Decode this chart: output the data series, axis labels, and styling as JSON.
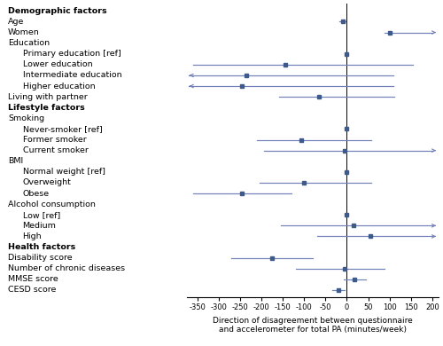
{
  "rows": [
    {
      "label": "Demographic factors",
      "indent": 0,
      "bold": true,
      "estimate": null,
      "ci_low": null,
      "ci_high": null,
      "arrow_low": false,
      "arrow_high": false,
      "is_ref": false
    },
    {
      "label": "Age",
      "indent": 0,
      "bold": false,
      "estimate": -10,
      "ci_low": -18,
      "ci_high": -2,
      "arrow_low": false,
      "arrow_high": false,
      "is_ref": false
    },
    {
      "label": "Women",
      "indent": 0,
      "bold": false,
      "estimate": 100,
      "ci_low": 88,
      "ci_high": 200,
      "arrow_low": false,
      "arrow_high": true,
      "is_ref": false
    },
    {
      "label": "Education",
      "indent": 0,
      "bold": false,
      "estimate": null,
      "ci_low": null,
      "ci_high": null,
      "arrow_low": false,
      "arrow_high": false,
      "is_ref": false
    },
    {
      "label": "Primary education [ref]",
      "indent": 1,
      "bold": false,
      "estimate": 0,
      "ci_low": null,
      "ci_high": null,
      "arrow_low": false,
      "arrow_high": false,
      "is_ref": true
    },
    {
      "label": "Lower education",
      "indent": 1,
      "bold": false,
      "estimate": -145,
      "ci_low": -360,
      "ci_high": 155,
      "arrow_low": false,
      "arrow_high": false,
      "is_ref": false
    },
    {
      "label": "Intermediate education",
      "indent": 1,
      "bold": false,
      "estimate": -235,
      "ci_low": -370,
      "ci_high": 110,
      "arrow_low": true,
      "arrow_high": false,
      "is_ref": false
    },
    {
      "label": "Higher education",
      "indent": 1,
      "bold": false,
      "estimate": -245,
      "ci_low": -370,
      "ci_high": 110,
      "arrow_low": true,
      "arrow_high": false,
      "is_ref": false
    },
    {
      "label": "Living with partner",
      "indent": 0,
      "bold": false,
      "estimate": -65,
      "ci_low": -158,
      "ci_high": 112,
      "arrow_low": false,
      "arrow_high": false,
      "is_ref": false
    },
    {
      "label": "Lifestyle factors",
      "indent": 0,
      "bold": true,
      "estimate": null,
      "ci_low": null,
      "ci_high": null,
      "arrow_low": false,
      "arrow_high": false,
      "is_ref": false
    },
    {
      "label": "Smoking",
      "indent": 0,
      "bold": false,
      "estimate": null,
      "ci_low": null,
      "ci_high": null,
      "arrow_low": false,
      "arrow_high": false,
      "is_ref": false
    },
    {
      "label": "Never-smoker [ref]",
      "indent": 1,
      "bold": false,
      "estimate": 0,
      "ci_low": null,
      "ci_high": null,
      "arrow_low": false,
      "arrow_high": false,
      "is_ref": true
    },
    {
      "label": "Former smoker",
      "indent": 1,
      "bold": false,
      "estimate": -107,
      "ci_low": -210,
      "ci_high": 58,
      "arrow_low": false,
      "arrow_high": false,
      "is_ref": false
    },
    {
      "label": "Current smoker",
      "indent": 1,
      "bold": false,
      "estimate": -5,
      "ci_low": -195,
      "ci_high": 200,
      "arrow_low": false,
      "arrow_high": true,
      "is_ref": false
    },
    {
      "label": "BMI",
      "indent": 0,
      "bold": false,
      "estimate": null,
      "ci_low": null,
      "ci_high": null,
      "arrow_low": false,
      "arrow_high": false,
      "is_ref": false
    },
    {
      "label": "Normal weight [ref]",
      "indent": 1,
      "bold": false,
      "estimate": 0,
      "ci_low": null,
      "ci_high": null,
      "arrow_low": false,
      "arrow_high": false,
      "is_ref": true
    },
    {
      "label": "Overweight",
      "indent": 1,
      "bold": false,
      "estimate": -100,
      "ci_low": -205,
      "ci_high": 58,
      "arrow_low": false,
      "arrow_high": false,
      "is_ref": false
    },
    {
      "label": "Obese",
      "indent": 1,
      "bold": false,
      "estimate": -245,
      "ci_low": -360,
      "ci_high": -130,
      "arrow_low": false,
      "arrow_high": false,
      "is_ref": false
    },
    {
      "label": "Alcohol consumption",
      "indent": 0,
      "bold": false,
      "estimate": null,
      "ci_low": null,
      "ci_high": null,
      "arrow_low": false,
      "arrow_high": false,
      "is_ref": false
    },
    {
      "label": "Low [ref]",
      "indent": 1,
      "bold": false,
      "estimate": 0,
      "ci_low": null,
      "ci_high": null,
      "arrow_low": false,
      "arrow_high": false,
      "is_ref": true
    },
    {
      "label": "Medium",
      "indent": 1,
      "bold": false,
      "estimate": 15,
      "ci_low": -155,
      "ci_high": 200,
      "arrow_low": false,
      "arrow_high": true,
      "is_ref": false
    },
    {
      "label": "High",
      "indent": 1,
      "bold": false,
      "estimate": 55,
      "ci_low": -70,
      "ci_high": 200,
      "arrow_low": false,
      "arrow_high": true,
      "is_ref": false
    },
    {
      "label": "Health factors",
      "indent": 0,
      "bold": true,
      "estimate": null,
      "ci_low": null,
      "ci_high": null,
      "arrow_low": false,
      "arrow_high": false,
      "is_ref": false
    },
    {
      "label": "Disability score",
      "indent": 0,
      "bold": false,
      "estimate": -175,
      "ci_low": -270,
      "ci_high": -80,
      "arrow_low": false,
      "arrow_high": false,
      "is_ref": false
    },
    {
      "label": "Number of chronic diseases",
      "indent": 0,
      "bold": false,
      "estimate": -5,
      "ci_low": -120,
      "ci_high": 88,
      "arrow_low": false,
      "arrow_high": false,
      "is_ref": false
    },
    {
      "label": "MMSE score",
      "indent": 0,
      "bold": false,
      "estimate": 18,
      "ci_low": -8,
      "ci_high": 45,
      "arrow_low": false,
      "arrow_high": false,
      "is_ref": false
    },
    {
      "label": "CESD score",
      "indent": 0,
      "bold": false,
      "estimate": -20,
      "ci_low": -35,
      "ci_high": -5,
      "arrow_low": false,
      "arrow_high": false,
      "is_ref": false
    }
  ],
  "xlabel": "Direction of disagreement between questionnaire\nand accelerometer for total PA (minutes/week)",
  "xlim": [
    -375,
    215
  ],
  "xticks": [
    -350,
    -300,
    -250,
    -200,
    -150,
    -100,
    -50,
    0,
    50,
    100,
    150,
    200
  ],
  "xticklabels": [
    "-350",
    "-300",
    "-250",
    "-200",
    "-150",
    "-100",
    "-50",
    "0",
    "50",
    "100",
    "150",
    "200"
  ],
  "marker_color": "#3d5a8a",
  "line_color": "#7080b8",
  "figsize": [
    5.0,
    3.9
  ],
  "dpi": 100
}
